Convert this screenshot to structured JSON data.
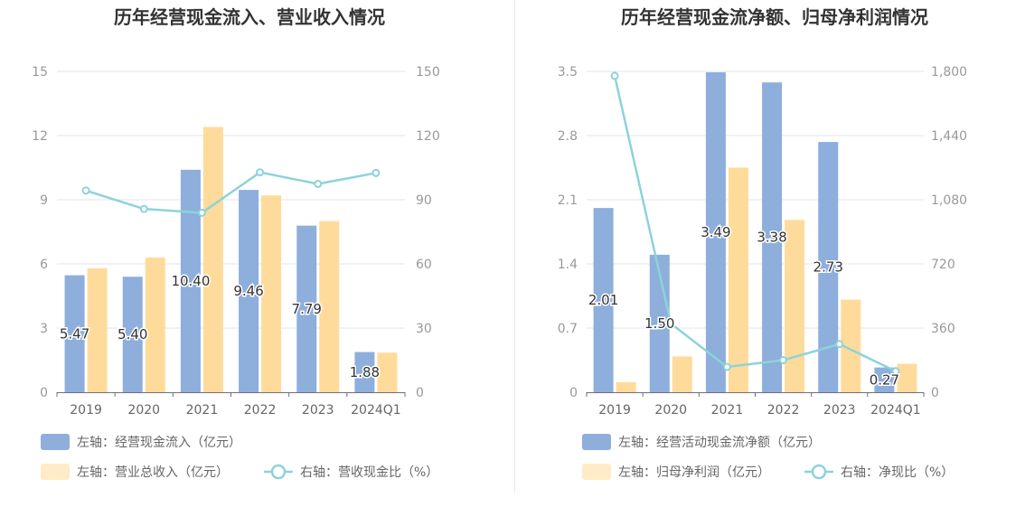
{
  "chart_data": [
    {
      "type": "bar",
      "title": "历年经营现金流入、营业收入情况",
      "categories": [
        "2019",
        "2020",
        "2021",
        "2022",
        "2023",
        "2024Q1"
      ],
      "left_axis": {
        "ylim": [
          0,
          15
        ],
        "ticks": [
          "0",
          "3",
          "6",
          "9",
          "12",
          "15"
        ]
      },
      "right_axis": {
        "ylim": [
          0,
          150
        ],
        "ticks": [
          "0",
          "30",
          "60",
          "90",
          "120",
          "150"
        ]
      },
      "series": [
        {
          "name": "左轴：经营现金流入（亿元）",
          "type": "bar",
          "axis": "left",
          "color": "#8eaedc",
          "values": [
            5.47,
            5.4,
            10.4,
            9.46,
            7.79,
            1.88
          ],
          "labels": [
            "5.47",
            "5.40",
            "10.40",
            "9.46",
            "7.79",
            "1.88"
          ]
        },
        {
          "name": "左轴：营业总收入（亿元）",
          "type": "bar",
          "axis": "left",
          "color": "#ffdb9b",
          "values": [
            5.8,
            6.3,
            12.4,
            9.2,
            8.0,
            1.85
          ]
        },
        {
          "name": "右轴：营收现金比（%）",
          "type": "line",
          "axis": "right",
          "color": "#8dd3d9",
          "values": [
            94.3,
            85.7,
            83.9,
            102.8,
            97.4,
            102.5
          ]
        }
      ],
      "grid": true,
      "legend_position": "bottom-left"
    },
    {
      "type": "bar",
      "title": "历年经营现金流净额、归母净利润情况",
      "categories": [
        "2019",
        "2020",
        "2021",
        "2022",
        "2023",
        "2024Q1"
      ],
      "left_axis": {
        "ylim": [
          0,
          3.5
        ],
        "ticks": [
          "0",
          "0.7",
          "1.4",
          "2.1",
          "2.8",
          "3.5"
        ]
      },
      "right_axis": {
        "ylim": [
          0,
          1800
        ],
        "ticks": [
          "0",
          "360",
          "720",
          "1,080",
          "1,440",
          "1,800"
        ]
      },
      "series": [
        {
          "name": "左轴：经营活动现金流净额（亿元）",
          "type": "bar",
          "axis": "left",
          "color": "#8eaedc",
          "values": [
            2.01,
            1.5,
            3.49,
            3.38,
            2.73,
            0.27
          ],
          "labels": [
            "2.01",
            "1.50",
            "3.49",
            "3.38",
            "2.73",
            "0.27"
          ]
        },
        {
          "name": "左轴：归母净利润（亿元）",
          "type": "bar",
          "axis": "left",
          "color": "#ffdb9b",
          "values": [
            0.11,
            0.39,
            2.45,
            1.88,
            1.01,
            0.31
          ]
        },
        {
          "name": "右轴：净现比（%）",
          "type": "line",
          "axis": "right",
          "color": "#8dd3d9",
          "values": [
            1775,
            385,
            142,
            180,
            270,
            118
          ]
        }
      ],
      "grid": true,
      "legend_position": "bottom-left"
    }
  ]
}
